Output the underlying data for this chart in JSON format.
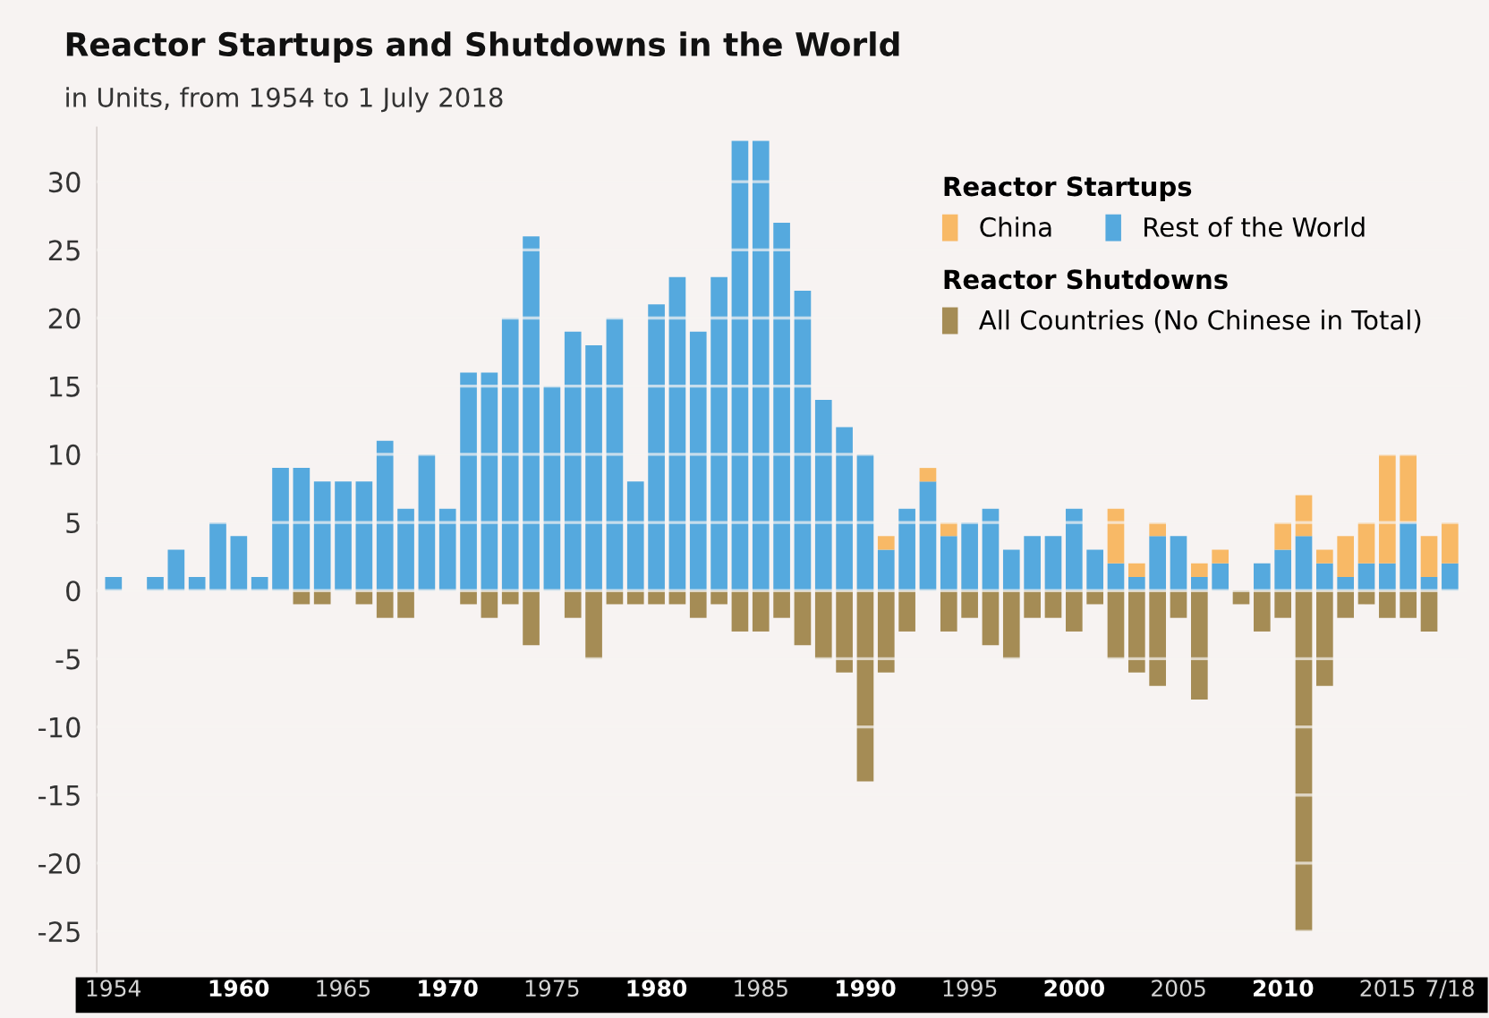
{
  "chart_data": {
    "type": "bar",
    "title": "Reactor Startups and Shutdowns in the World",
    "subtitle": "in Units, from 1954 to 1 July 2018",
    "categories": [
      "1954",
      null,
      null,
      null,
      null,
      null,
      "1960",
      null,
      null,
      null,
      null,
      "1965",
      null,
      null,
      null,
      null,
      "1970",
      null,
      null,
      null,
      null,
      "1975",
      null,
      null,
      null,
      null,
      "1980",
      null,
      null,
      null,
      null,
      "1985",
      null,
      null,
      null,
      null,
      "1990",
      null,
      null,
      null,
      null,
      "1995",
      null,
      null,
      null,
      null,
      "2000",
      null,
      null,
      null,
      null,
      "2005",
      null,
      null,
      null,
      null,
      "2010",
      null,
      null,
      null,
      null,
      "2015",
      null,
      null,
      "7/18"
    ],
    "stacked": true,
    "series": [
      {
        "name": "Rest of the World",
        "color": "#55a9de",
        "values": [
          1,
          0,
          1,
          3,
          1,
          5,
          4,
          1,
          9,
          9,
          8,
          8,
          8,
          11,
          6,
          10,
          6,
          16,
          16,
          20,
          26,
          15,
          19,
          18,
          20,
          8,
          21,
          23,
          19,
          23,
          33,
          33,
          27,
          22,
          14,
          12,
          10,
          3,
          6,
          8,
          4,
          5,
          6,
          3,
          4,
          4,
          6,
          3,
          2,
          1,
          4,
          4,
          1,
          2,
          0,
          2,
          3,
          4,
          2,
          1,
          2,
          2,
          5,
          1,
          2
        ]
      },
      {
        "name": "China",
        "color": "#f8b966",
        "values": [
          0,
          0,
          0,
          0,
          0,
          0,
          0,
          0,
          0,
          0,
          0,
          0,
          0,
          0,
          0,
          0,
          0,
          0,
          0,
          0,
          0,
          0,
          0,
          0,
          0,
          0,
          0,
          0,
          0,
          0,
          0,
          0,
          0,
          0,
          0,
          0,
          0,
          1,
          0,
          1,
          1,
          0,
          0,
          0,
          0,
          0,
          0,
          0,
          4,
          1,
          1,
          0,
          1,
          1,
          0,
          0,
          2,
          3,
          1,
          3,
          3,
          8,
          5,
          3,
          3
        ]
      },
      {
        "name": "All Countries (No Chinese in Total)",
        "color": "#a58c55",
        "values": [
          0,
          0,
          0,
          0,
          0,
          0,
          0,
          0,
          0,
          -1,
          -1,
          0,
          -1,
          -2,
          -2,
          0,
          0,
          -1,
          -2,
          -1,
          -4,
          0,
          -2,
          -5,
          -1,
          -1,
          -1,
          -1,
          -2,
          -1,
          -3,
          -3,
          -2,
          -4,
          -5,
          -6,
          -14,
          -6,
          -3,
          0,
          -3,
          -2,
          -4,
          -5,
          -2,
          -2,
          -3,
          -1,
          -5,
          -6,
          -7,
          -2,
          -8,
          0,
          -1,
          -3,
          -2,
          -25,
          -7,
          -2,
          -1,
          -2,
          -2,
          -3,
          0
        ]
      }
    ],
    "ylim": [
      -28,
      34
    ],
    "yticks": [
      {
        "value": -25,
        "label": "-25"
      },
      {
        "value": -20,
        "label": "-20"
      },
      {
        "value": -15,
        "label": "-15"
      },
      {
        "value": -10,
        "label": "-10"
      },
      {
        "value": -5,
        "label": "-5"
      },
      0,
      5,
      10,
      15,
      20,
      25,
      30
    ],
    "grid": "y",
    "legend": "top right",
    "legend_title": "Reactor Startups",
    "annotations": [
      "Reactor Shutdowns"
    ]
  }
}
